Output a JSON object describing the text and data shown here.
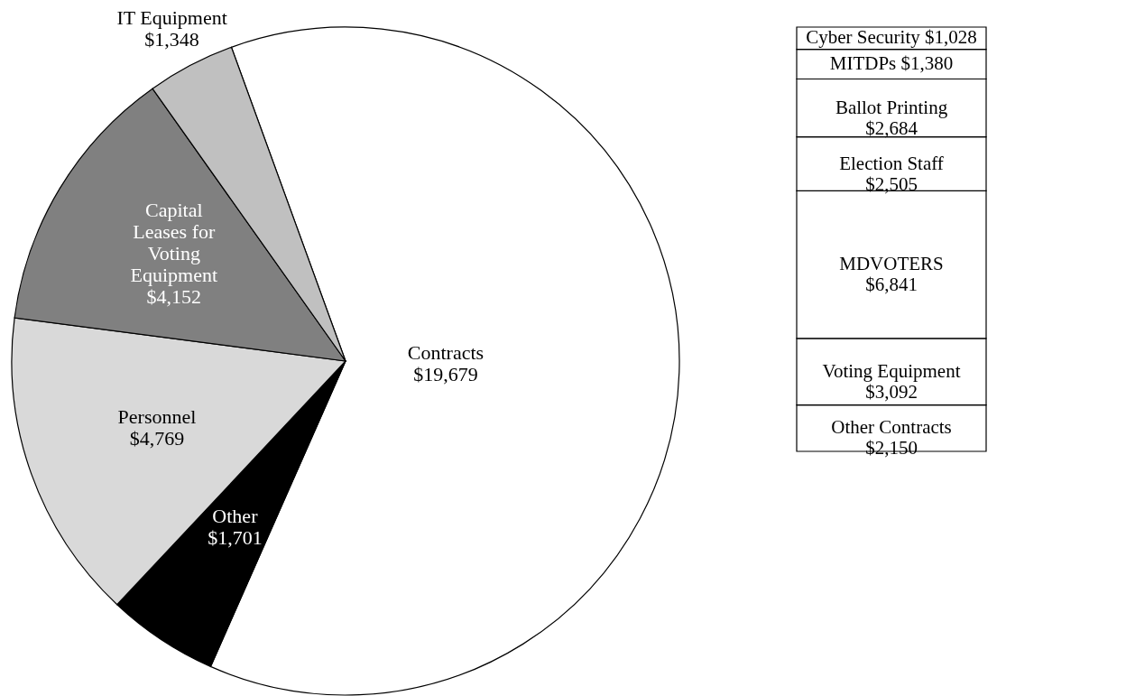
{
  "chart_data": [
    {
      "type": "pie",
      "categories": [
        "Contracts",
        "Other",
        "Personnel",
        "Capital Leases for Voting Equipment",
        "IT Equipment"
      ],
      "values": [
        19679,
        1701,
        4769,
        4152,
        1348
      ],
      "value_labels": [
        "$19,679",
        "$1,701",
        "$4,769",
        "$4,152",
        "$1,348"
      ],
      "colors": [
        "#ffffff",
        "#000000",
        "#d9d9d9",
        "#808080",
        "#c0c0c0"
      ]
    },
    {
      "type": "bar",
      "stacked": true,
      "categories": [
        null
      ],
      "series": [
        {
          "name": "Other Contracts",
          "color": "#ffffff",
          "values": [
            2150
          ],
          "value_labels": [
            "$2,150"
          ]
        },
        {
          "name": "Voting Equipment",
          "color": "#ffffff",
          "values": [
            3092
          ],
          "value_labels": [
            "$3,092"
          ]
        },
        {
          "name": "MDVOTERS",
          "color": "#ffffff",
          "values": [
            6841
          ],
          "value_labels": [
            "$6,841"
          ]
        },
        {
          "name": "Election Staff",
          "color": "#ffffff",
          "values": [
            2505
          ],
          "value_labels": [
            "$2,505"
          ]
        },
        {
          "name": "Ballot Printing",
          "color": "#ffffff",
          "values": [
            2684
          ],
          "value_labels": [
            "$2,684"
          ]
        },
        {
          "name": "MITDPs",
          "color": "#ffffff",
          "values": [
            1380
          ],
          "value_labels": [
            "$1,380"
          ]
        },
        {
          "name": "Cyber Security",
          "color": "#ffffff",
          "values": [
            1028
          ],
          "value_labels": [
            "$1,028"
          ]
        }
      ]
    }
  ]
}
